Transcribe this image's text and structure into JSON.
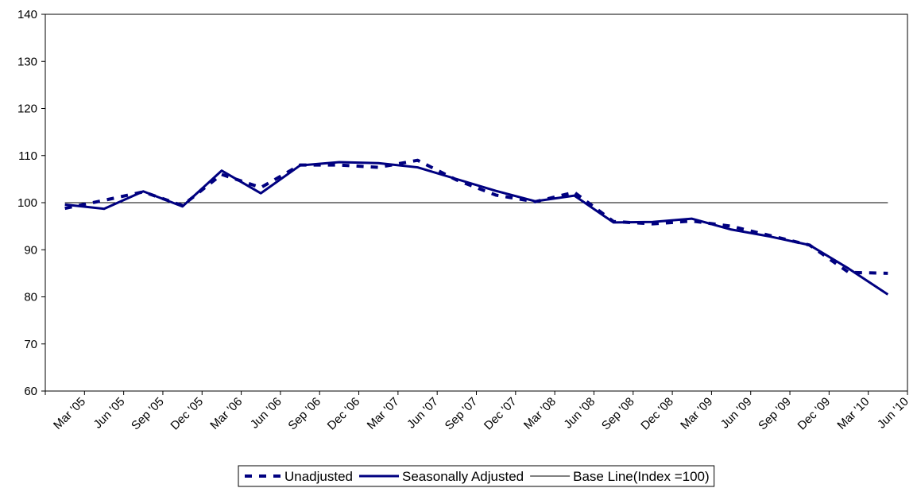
{
  "chart_data": {
    "type": "line",
    "title": "",
    "xlabel": "",
    "ylabel": "",
    "ylim": [
      60,
      140
    ],
    "yticks": [
      60,
      70,
      80,
      90,
      100,
      110,
      120,
      130,
      140
    ],
    "grid": false,
    "legend_position": "bottom",
    "categories": [
      "Mar '05",
      "Jun '05",
      "Sep '05",
      "Dec '05",
      "Mar '06",
      "Jun '06",
      "Sep '06",
      "Dec '06",
      "Mar '07",
      "Jun '07",
      "Sep '07",
      "Dec '07",
      "Mar '08",
      "Jun '08",
      "Sep '08",
      "Dec '08",
      "Mar '09",
      "Jun '09",
      "Sep '09",
      "Dec '09",
      "Mar '10",
      "Jun '10"
    ],
    "series": [
      {
        "name": "Unadjusted",
        "style": "dashed",
        "color": "#000080",
        "values": [
          98.8,
          100.5,
          102.3,
          99.4,
          106.0,
          103.2,
          108.0,
          108.0,
          107.5,
          109.0,
          104.8,
          101.6,
          100.2,
          102.2,
          96.0,
          95.5,
          96.1,
          95.0,
          93.0,
          91.0,
          85.2,
          85.0
        ]
      },
      {
        "name": "Seasonally Adjusted",
        "style": "solid",
        "color": "#000080",
        "values": [
          99.6,
          98.7,
          102.4,
          99.2,
          106.8,
          102.0,
          107.9,
          108.6,
          108.4,
          107.5,
          105.0,
          102.5,
          100.3,
          101.5,
          95.8,
          95.9,
          96.6,
          94.3,
          92.8,
          91.0,
          86.0,
          80.5
        ]
      },
      {
        "name": "Base Line(Index =100)",
        "style": "thin",
        "color": "#000000",
        "values": [
          100,
          100,
          100,
          100,
          100,
          100,
          100,
          100,
          100,
          100,
          100,
          100,
          100,
          100,
          100,
          100,
          100,
          100,
          100,
          100,
          100,
          100
        ]
      }
    ]
  }
}
